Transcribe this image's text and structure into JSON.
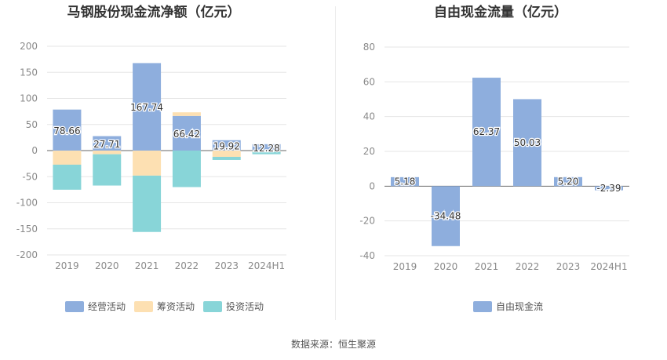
{
  "source": "数据来源：恒生聚源",
  "chart_data": [
    {
      "type": "bar",
      "stacked": true,
      "title": "马钢股份现金流净额（亿元）",
      "categories": [
        "2019",
        "2020",
        "2021",
        "2022",
        "2023",
        "2024H1"
      ],
      "ylim": [
        -200,
        200
      ],
      "yticks": [
        200,
        150,
        100,
        50,
        0,
        -50,
        -100,
        -150,
        -200
      ],
      "grid": true,
      "legend_position": "bottom",
      "series": [
        {
          "name": "经营活动",
          "color": "#8eaedd",
          "values": [
            78.66,
            27.71,
            167.74,
            66.42,
            19.92,
            12.28
          ]
        },
        {
          "name": "筹资活动",
          "color": "#fde0b2",
          "values": [
            -27,
            -7,
            -48,
            7,
            -12,
            -2
          ]
        },
        {
          "name": "投资活动",
          "color": "#88d5d8",
          "values": [
            -48,
            -60,
            -108,
            -70,
            -6,
            -5
          ]
        }
      ],
      "data_labels": [
        "78.66",
        "27.71",
        "167.74",
        "66.42",
        "19.92",
        "12.28"
      ]
    },
    {
      "type": "bar",
      "title": "自由现金流量（亿元）",
      "categories": [
        "2019",
        "2020",
        "2021",
        "2022",
        "2023",
        "2024H1"
      ],
      "ylim": [
        -40,
        80
      ],
      "yticks": [
        80,
        60,
        40,
        20,
        0,
        -20,
        -40
      ],
      "grid": true,
      "legend_position": "bottom",
      "series": [
        {
          "name": "自由现金流",
          "color": "#8eaedd",
          "values": [
            5.18,
            -34.48,
            62.37,
            50.03,
            5.2,
            -2.39
          ]
        }
      ],
      "data_labels": [
        "5.18",
        "-34.48",
        "62.37",
        "50.03",
        "5.20",
        "-2.39"
      ]
    }
  ]
}
